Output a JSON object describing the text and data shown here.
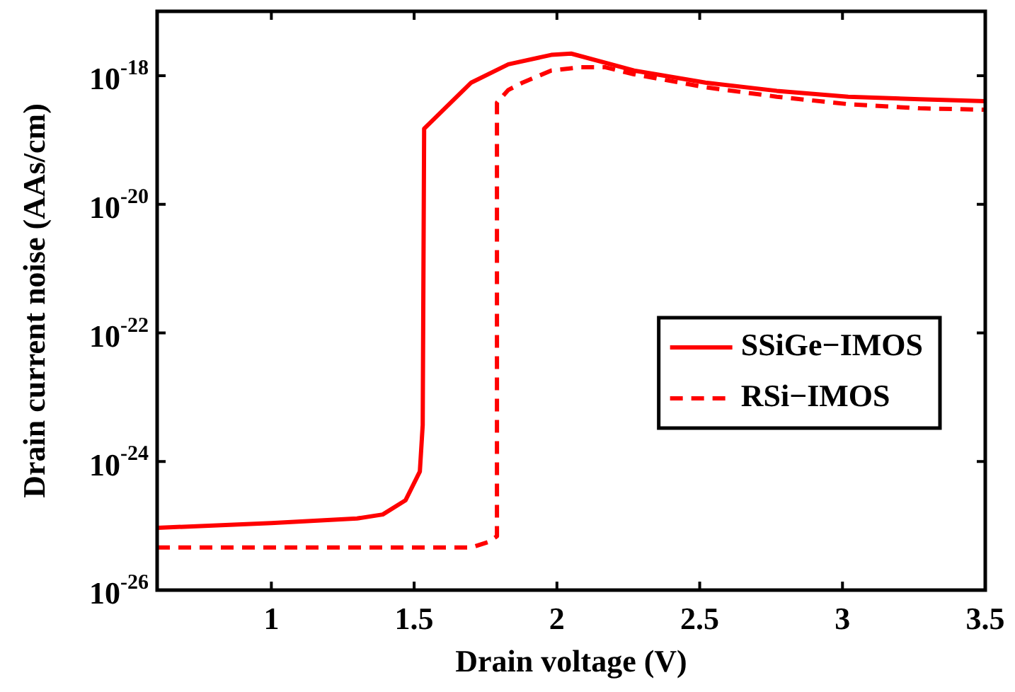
{
  "chart_data": {
    "type": "line",
    "xlabel": "Drain voltage (V)",
    "ylabel": "Drain current noise (AAs/cm)",
    "log": "y",
    "xlim": [
      0.6,
      3.5
    ],
    "xticks": [
      1,
      1.5,
      2,
      2.5,
      3,
      3.5
    ],
    "ylim": [
      1e-26,
      1e-17
    ],
    "yticks": [
      {
        "value": 1e-26,
        "label": "10$^{-26}$"
      },
      {
        "value": 1e-24,
        "label": "10$^{-24}$"
      },
      {
        "value": 1e-22,
        "label": "10$^{-22}$"
      },
      {
        "value": 1e-20,
        "label": "10$^{-20}$"
      },
      {
        "value": 1e-18,
        "label": "10$^{-18}$"
      }
    ],
    "grid": false,
    "legend": "right",
    "marker": "none",
    "series": [
      {
        "name": "SSiGe−IMOS",
        "color": "#ff0000",
        "line_style": "solid",
        "x": [
          0.6,
          1.0,
          1.3,
          1.39,
          1.47,
          1.52,
          1.53,
          1.535,
          1.7,
          1.83,
          1.98,
          2.05,
          2.27,
          2.52,
          2.77,
          3.02,
          3.27,
          3.5
        ],
        "values": [
          9.3e-26,
          1.1e-25,
          1.3e-25,
          1.5e-25,
          2.5e-25,
          7e-25,
          3.7e-24,
          1.5e-19,
          7.8e-19,
          1.5e-18,
          2.1e-18,
          2.2e-18,
          1.2e-18,
          7.8e-19,
          5.8e-19,
          4.7e-19,
          4.3e-19,
          4e-19
        ]
      },
      {
        "name": "RSi−IMOS",
        "color": "#ff0000",
        "line_style": "dashed",
        "x": [
          0.6,
          1.7,
          1.76,
          1.79,
          1.79,
          1.83,
          1.88,
          1.98,
          2.08,
          2.17,
          2.27,
          2.52,
          2.77,
          3.02,
          3.27,
          3.5
        ],
        "values": [
          4.6e-26,
          4.6e-26,
          5.6e-26,
          6.9e-26,
          3.8e-19,
          6e-19,
          7.8e-19,
          1.2e-18,
          1.35e-18,
          1.35e-18,
          1.05e-18,
          6.6e-19,
          4.7e-19,
          3.6e-19,
          3.1e-19,
          2.95e-19
        ]
      }
    ]
  }
}
